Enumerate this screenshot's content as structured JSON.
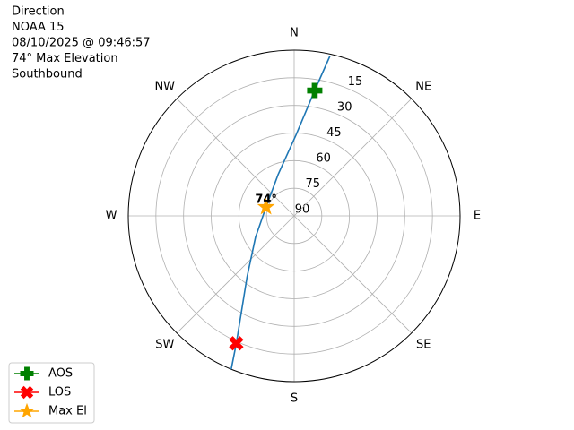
{
  "chart_data": {
    "type": "polar",
    "text_lines": [
      "Direction",
      "NOAA 15",
      "08/10/2025 @ 09:46:57",
      "74° Max Elevation",
      "Southbound"
    ],
    "xticks": [
      {
        "value": 0,
        "label": "N"
      },
      {
        "value": 45,
        "label": "NE"
      },
      {
        "value": 90,
        "label": "E"
      },
      {
        "value": 135,
        "label": "SE"
      },
      {
        "value": 180,
        "label": "S"
      },
      {
        "value": 225,
        "label": "SW"
      },
      {
        "value": 270,
        "label": "W"
      },
      {
        "value": 315,
        "label": "NW"
      }
    ],
    "ylim": [
      90,
      0
    ],
    "yticks": [
      90,
      75,
      60,
      45,
      30,
      15
    ],
    "grid": true,
    "track": {
      "color": "#1f77b4",
      "x": [
        12.6,
        9.3,
        1.3,
        338.6,
        287.4,
        241,
        217.5,
        204.4,
        202.3
      ],
      "values": [
        1,
        21,
        46,
        66,
        74,
        66,
        48,
        14,
        0
      ]
    },
    "series": [
      {
        "name": "AOS",
        "color": "#008000",
        "marker": "plus",
        "x": [
          9.3
        ],
        "values": [
          21
        ]
      },
      {
        "name": "LOS",
        "color": "#ff0000",
        "marker": "x",
        "x": [
          204.4
        ],
        "values": [
          14
        ]
      },
      {
        "name": "Max El",
        "color": "#ffa500",
        "marker": "star",
        "x": [
          287.4
        ],
        "values": [
          74
        ]
      }
    ],
    "annotations": [
      {
        "text": "74°"
      }
    ],
    "legend": "lower left"
  }
}
